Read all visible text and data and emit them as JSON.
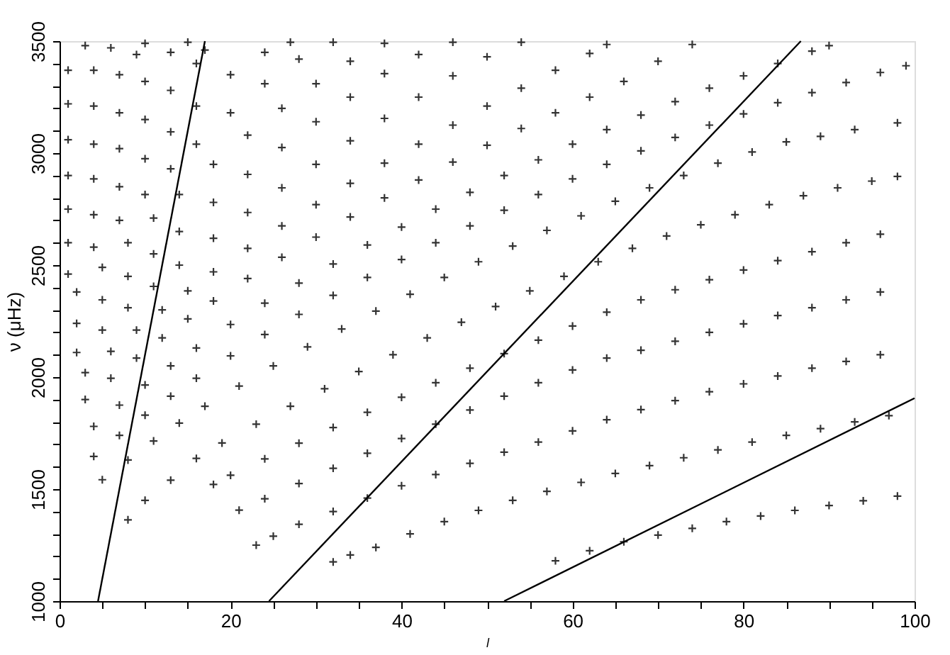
{
  "chart_data": {
    "type": "scatter",
    "xlabel": "l",
    "ylabel": "ν (μHz)",
    "xlim": [
      0,
      100
    ],
    "ylim": [
      1000,
      3500
    ],
    "xticks": [
      0,
      {
        "value": 5,
        "label": null
      },
      {
        "value": 10,
        "label": null
      },
      {
        "value": 15,
        "label": null
      },
      20,
      {
        "value": 25,
        "label": null
      },
      {
        "value": 30,
        "label": null
      },
      {
        "value": 35,
        "label": null
      },
      40,
      {
        "value": 45,
        "label": null
      },
      {
        "value": 50,
        "label": null
      },
      {
        "value": 55,
        "label": null
      },
      60,
      {
        "value": 65,
        "label": null
      },
      {
        "value": 70,
        "label": null
      },
      {
        "value": 75,
        "label": null
      },
      80,
      {
        "value": 85,
        "label": null
      },
      {
        "value": 90,
        "label": null
      },
      {
        "value": 95,
        "label": null
      },
      100
    ],
    "yticks": [
      1000,
      {
        "value": 1100,
        "label": null
      },
      {
        "value": 1200,
        "label": null
      },
      {
        "value": 1300,
        "label": null
      },
      {
        "value": 1400,
        "label": null
      },
      1500,
      {
        "value": 1600,
        "label": null
      },
      {
        "value": 1700,
        "label": null
      },
      {
        "value": 1800,
        "label": null
      },
      {
        "value": 1900,
        "label": null
      },
      2000,
      {
        "value": 2100,
        "label": null
      },
      {
        "value": 2200,
        "label": null
      },
      {
        "value": 2300,
        "label": null
      },
      {
        "value": 2400,
        "label": null
      },
      2500,
      {
        "value": 2600,
        "label": null
      },
      {
        "value": 2700,
        "label": null
      },
      {
        "value": 2800,
        "label": null
      },
      {
        "value": 2900,
        "label": null
      },
      3000,
      {
        "value": 3100,
        "label": null
      },
      {
        "value": 3200,
        "label": null
      },
      {
        "value": 3300,
        "label": null
      },
      {
        "value": 3400,
        "label": null
      },
      3500
    ],
    "grid": false,
    "marker": "cross",
    "series": [
      {
        "color": "#333333",
        "x": [
          58,
          62,
          66,
          70,
          74,
          78,
          82,
          86,
          90,
          94,
          98
        ],
        "values": [
          1180,
          1225,
          1265,
          1295,
          1325,
          1355,
          1380,
          1405,
          1427,
          1448,
          1469
        ]
      },
      {
        "color": "#333333",
        "x": [
          32,
          34,
          37,
          41,
          45,
          49,
          53,
          57,
          61,
          65,
          69,
          73,
          77,
          81,
          85,
          89,
          93,
          97
        ],
        "values": [
          1175,
          1206,
          1240,
          1300,
          1355,
          1405,
          1450,
          1490,
          1530,
          1570,
          1605,
          1640,
          1675,
          1710,
          1740,
          1770,
          1800,
          1828
        ]
      },
      {
        "color": "#333333",
        "x": [
          23,
          25,
          28,
          32,
          36,
          40,
          44,
          48,
          52,
          56,
          60,
          64,
          68,
          72,
          76,
          80,
          84,
          88,
          92,
          96
        ],
        "values": [
          1250,
          1290,
          1343,
          1400,
          1460,
          1515,
          1565,
          1615,
          1665,
          1710,
          1760,
          1810,
          1855,
          1895,
          1935,
          1970,
          2005,
          2040,
          2070,
          2100
        ]
      },
      {
        "color": "#333333",
        "x": [
          21,
          24,
          28,
          32,
          36,
          40,
          44,
          48,
          52,
          56,
          60,
          64,
          68,
          72,
          76,
          80,
          84,
          88,
          92,
          96
        ],
        "values": [
          1406,
          1457,
          1525,
          1593,
          1660,
          1726,
          1790,
          1853,
          1915,
          1975,
          2032,
          2085,
          2120,
          2160,
          2200,
          2238,
          2275,
          2310,
          2345,
          2380
        ]
      },
      {
        "color": "#333333",
        "x": [
          18,
          20,
          24,
          28,
          32,
          36,
          40,
          44,
          48,
          52,
          56,
          60,
          64,
          68,
          72,
          76,
          80,
          84,
          88,
          92,
          96
        ],
        "values": [
          1521,
          1562,
          1635,
          1705,
          1775,
          1843,
          1910,
          1975,
          2040,
          2105,
          2165,
          2228,
          2290,
          2345,
          2390,
          2435,
          2478,
          2520,
          2560,
          2600,
          2638
        ]
      },
      {
        "color": "#333333",
        "x": [
          8,
          10,
          13,
          16,
          19,
          23,
          27,
          31,
          35,
          39,
          43,
          47,
          51,
          55,
          59,
          63,
          67,
          71,
          75,
          79,
          83,
          87,
          91,
          95,
          98
        ],
        "values": [
          1363,
          1450,
          1540,
          1637,
          1706,
          1790,
          1870,
          1948,
          2025,
          2100,
          2175,
          2245,
          2315,
          2385,
          2450,
          2515,
          2575,
          2630,
          2680,
          2725,
          2770,
          2810,
          2845,
          2875,
          2896
        ]
      },
      {
        "color": "#333333",
        "x": [
          5,
          8,
          11,
          14,
          17,
          21,
          25,
          29,
          33,
          37,
          41,
          45,
          49,
          53,
          57,
          61,
          65,
          69,
          73,
          77,
          81,
          85,
          89,
          93,
          98
        ],
        "values": [
          1542,
          1630,
          1715,
          1795,
          1870,
          1960,
          2050,
          2135,
          2215,
          2295,
          2370,
          2445,
          2515,
          2585,
          2655,
          2720,
          2785,
          2845,
          2900,
          2955,
          3005,
          3050,
          3075,
          3105,
          3135
        ]
      },
      {
        "color": "#333333",
        "x": [
          4,
          7,
          10,
          13,
          16,
          20,
          24,
          28,
          32,
          36,
          40,
          44,
          48,
          52,
          56,
          60,
          64,
          68,
          72,
          76,
          80,
          84,
          88,
          92,
          96,
          99
        ],
        "values": [
          1646,
          1740,
          1830,
          1915,
          1995,
          2095,
          2190,
          2280,
          2365,
          2445,
          2525,
          2600,
          2675,
          2745,
          2815,
          2885,
          2950,
          3010,
          3070,
          3125,
          3175,
          3225,
          3270,
          3315,
          3360,
          3390
        ]
      },
      {
        "color": "#333333",
        "x": [
          4,
          7,
          10,
          13,
          16,
          20,
          24,
          28,
          32,
          36,
          40,
          44,
          48,
          52,
          56,
          60,
          64,
          68,
          72,
          76,
          80,
          84,
          88,
          90
        ],
        "values": [
          1780,
          1875,
          1965,
          2050,
          2130,
          2235,
          2330,
          2420,
          2505,
          2590,
          2670,
          2750,
          2825,
          2900,
          2970,
          3040,
          3105,
          3170,
          3230,
          3290,
          3345,
          3400,
          3455,
          3480
        ]
      },
      {
        "color": "#333333",
        "x": [
          3,
          6,
          9,
          12,
          15,
          18,
          22,
          26,
          30,
          34,
          38,
          42,
          46,
          50,
          54,
          58,
          62,
          66,
          70,
          74
        ],
        "values": [
          1900,
          1995,
          2085,
          2175,
          2260,
          2340,
          2440,
          2535,
          2625,
          2715,
          2800,
          2880,
          2960,
          3035,
          3110,
          3180,
          3250,
          3320,
          3410,
          3485
        ]
      },
      {
        "color": "#333333",
        "x": [
          3,
          6,
          9,
          12,
          15,
          18,
          22,
          26,
          30,
          34,
          38,
          42,
          46,
          50,
          54,
          58,
          62,
          64
        ],
        "values": [
          2020,
          2115,
          2210,
          2300,
          2385,
          2470,
          2575,
          2675,
          2770,
          2865,
          2955,
          3040,
          3125,
          3210,
          3290,
          3370,
          3445,
          3485
        ]
      },
      {
        "color": "#333333",
        "x": [
          2,
          5,
          8,
          11,
          14,
          18,
          22,
          26,
          30,
          34,
          38,
          42,
          46,
          50,
          54
        ],
        "values": [
          2110,
          2210,
          2310,
          2405,
          2500,
          2620,
          2735,
          2845,
          2950,
          3055,
          3155,
          3250,
          3345,
          3430,
          3495
        ]
      },
      {
        "color": "#333333",
        "x": [
          2,
          5,
          8,
          11,
          14,
          18,
          22,
          26,
          30,
          34,
          38,
          42,
          46
        ],
        "values": [
          2240,
          2345,
          2450,
          2550,
          2650,
          2780,
          2905,
          3025,
          3140,
          3250,
          3355,
          3440,
          3495
        ]
      },
      {
        "color": "#333333",
        "x": [
          2,
          5,
          8,
          11,
          14,
          18,
          22,
          26,
          30,
          34,
          38
        ],
        "values": [
          2380,
          2490,
          2600,
          2710,
          2815,
          2950,
          3080,
          3200,
          3310,
          3410,
          3490
        ]
      },
      {
        "color": "#333333",
        "x": [
          1,
          4,
          7,
          10,
          13,
          16,
          20,
          24,
          28,
          32
        ],
        "values": [
          2460,
          2580,
          2700,
          2815,
          2930,
          3040,
          3180,
          3310,
          3420,
          3495
        ]
      },
      {
        "color": "#333333",
        "x": [
          1,
          4,
          7,
          10,
          13,
          16,
          20,
          24,
          27
        ],
        "values": [
          2600,
          2725,
          2850,
          2975,
          3095,
          3210,
          3350,
          3450,
          3495
        ]
      },
      {
        "color": "#333333",
        "x": [
          1,
          4,
          7,
          10,
          13,
          16,
          17
        ],
        "values": [
          2750,
          2885,
          3020,
          3150,
          3280,
          3400,
          3460
        ]
      },
      {
        "color": "#333333",
        "x": [
          1,
          4,
          7,
          10,
          13,
          15
        ],
        "values": [
          2900,
          3040,
          3180,
          3320,
          3450,
          3495
        ]
      },
      {
        "color": "#333333",
        "x": [
          1,
          4,
          7,
          9,
          10
        ],
        "values": [
          3060,
          3210,
          3350,
          3440,
          3490
        ]
      },
      {
        "color": "#333333",
        "x": [
          1,
          4,
          6
        ],
        "values": [
          3220,
          3370,
          3470
        ]
      },
      {
        "color": "#333333",
        "x": [
          1,
          3
        ],
        "values": [
          3370,
          3480
        ]
      },
      {
        "type": "line",
        "color": "#000000",
        "marker": "none",
        "x": [
          4.5,
          17
        ],
        "values": [
          1000,
          3500
        ]
      },
      {
        "type": "line",
        "color": "#000000",
        "marker": "none",
        "x": [
          24.5,
          86.7
        ],
        "values": [
          1000,
          3500
        ]
      },
      {
        "type": "line",
        "color": "#000000",
        "marker": "none",
        "x": [
          52,
          100
        ],
        "values": [
          1000,
          1906
        ]
      }
    ]
  }
}
